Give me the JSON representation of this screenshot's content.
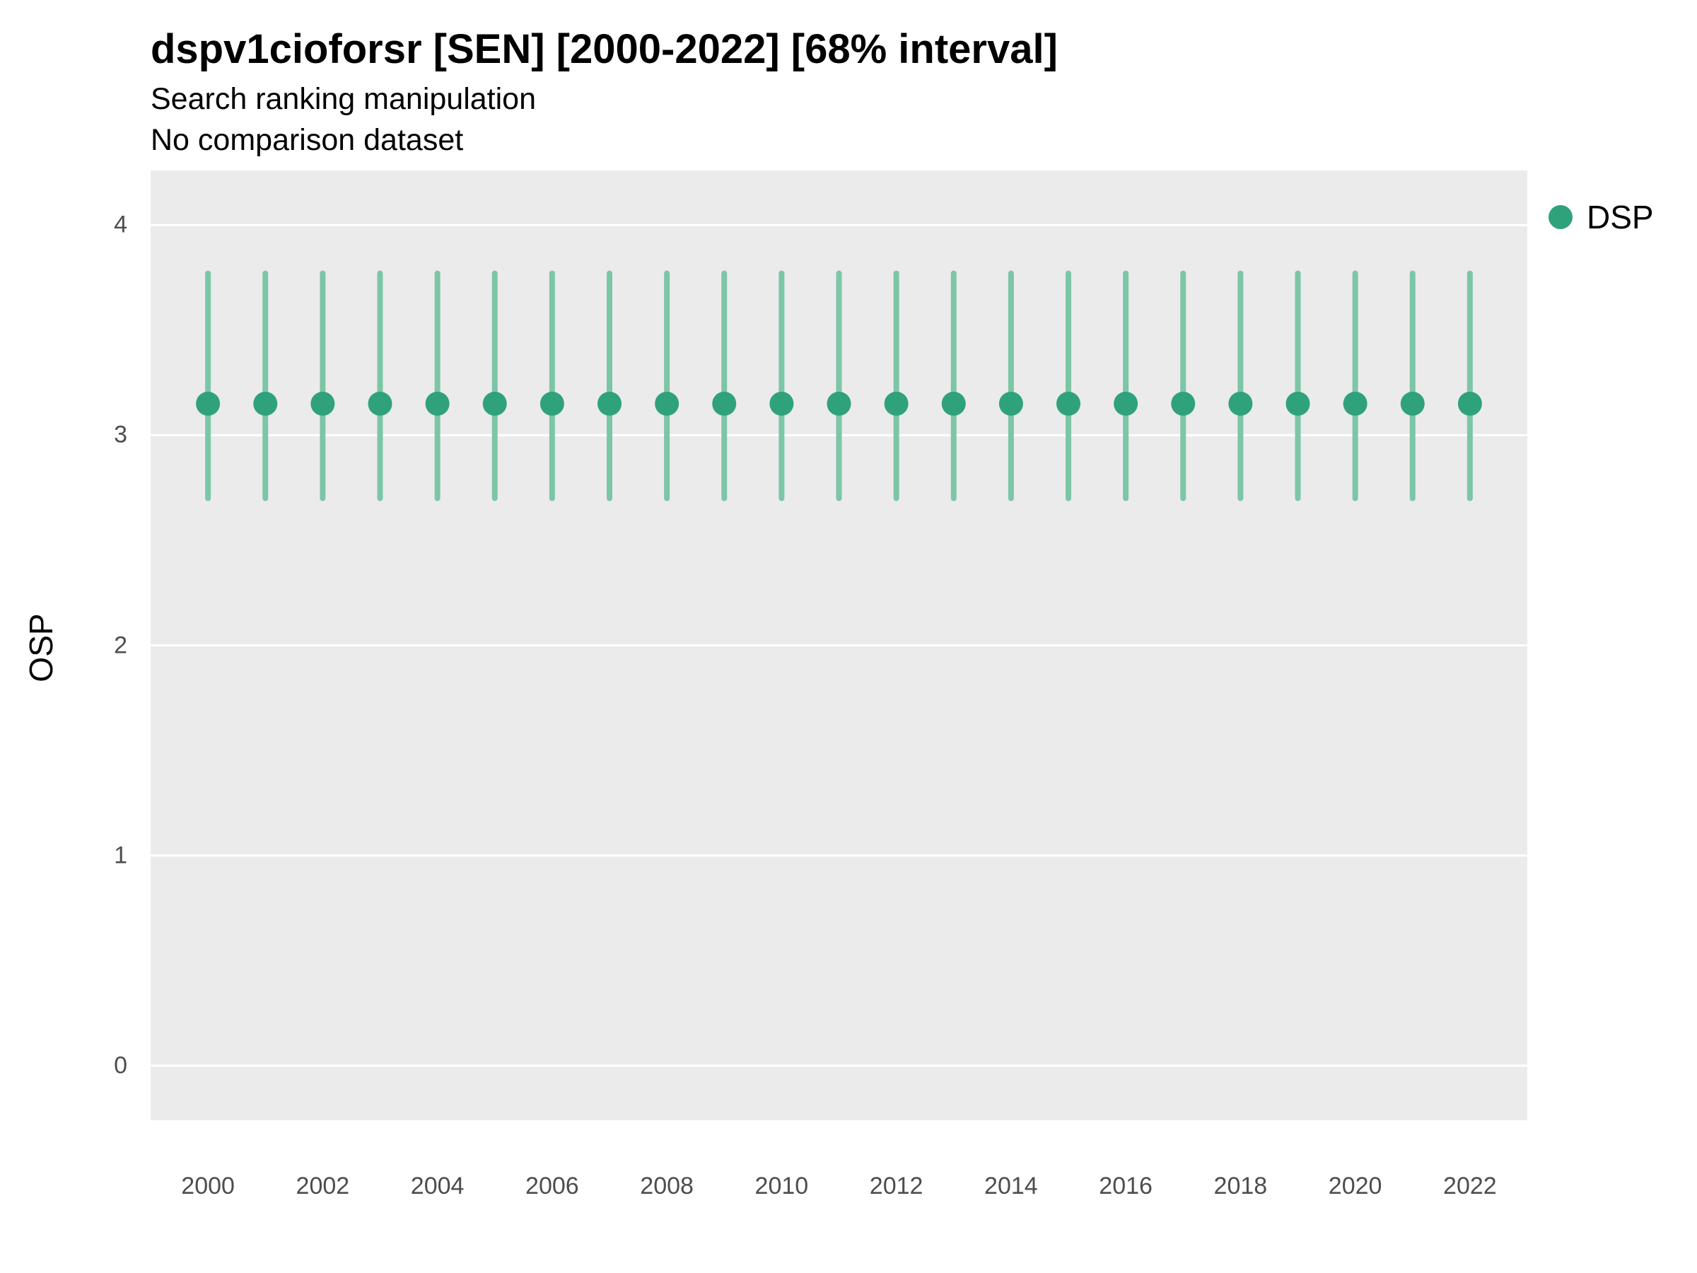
{
  "header": {
    "title": "dspv1cioforsr [SEN] [2000-2022] [68% interval]",
    "subtitle1": "Search ranking manipulation",
    "subtitle2": "No comparison dataset"
  },
  "legend": {
    "items": [
      {
        "label": "DSP",
        "color": "#2fa27c"
      }
    ]
  },
  "chart_data": {
    "type": "pointrange",
    "title": "dspv1cioforsr [SEN] [2000-2022] [68% interval]",
    "subtitle": "Search ranking manipulation",
    "note": "No comparison dataset",
    "xlabel": "",
    "ylabel": "OSP",
    "legend_position": "right",
    "grid": true,
    "panel_bg": "#ebebeb",
    "grid_color": "#ffffff",
    "point_color": "#2fa27c",
    "interval_color": "#7cc6a6",
    "xlim": [
      1999,
      2023
    ],
    "ylim": [
      -0.26,
      4.26
    ],
    "yticks": [
      0,
      1,
      2,
      3,
      4
    ],
    "xticks": [
      2000,
      2002,
      2004,
      2006,
      2008,
      2010,
      2012,
      2014,
      2016,
      2018,
      2020,
      2022
    ],
    "x": [
      2000,
      2001,
      2002,
      2003,
      2004,
      2005,
      2006,
      2007,
      2008,
      2009,
      2010,
      2011,
      2012,
      2013,
      2014,
      2015,
      2016,
      2017,
      2018,
      2019,
      2020,
      2021,
      2022
    ],
    "series": [
      {
        "name": "DSP",
        "values": [
          3.15,
          3.15,
          3.15,
          3.15,
          3.15,
          3.15,
          3.15,
          3.15,
          3.15,
          3.15,
          3.15,
          3.15,
          3.15,
          3.15,
          3.15,
          3.15,
          3.15,
          3.15,
          3.15,
          3.15,
          3.15,
          3.15,
          3.15
        ],
        "lo": [
          2.7,
          2.7,
          2.7,
          2.7,
          2.7,
          2.7,
          2.7,
          2.7,
          2.7,
          2.7,
          2.7,
          2.7,
          2.7,
          2.7,
          2.7,
          2.7,
          2.7,
          2.7,
          2.7,
          2.7,
          2.7,
          2.7,
          2.7
        ],
        "hi": [
          3.77,
          3.77,
          3.77,
          3.77,
          3.77,
          3.77,
          3.77,
          3.77,
          3.77,
          3.77,
          3.77,
          3.77,
          3.77,
          3.77,
          3.77,
          3.77,
          3.77,
          3.77,
          3.77,
          3.77,
          3.77,
          3.77,
          3.77
        ]
      }
    ]
  }
}
